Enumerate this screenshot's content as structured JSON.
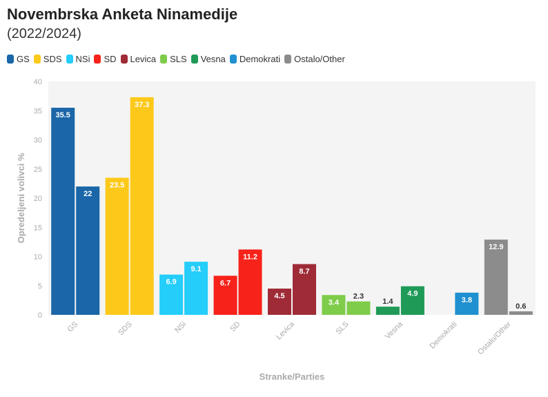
{
  "chart_data": {
    "type": "bar",
    "title": "Novembrska Anketa Ninamedije",
    "subtitle": "(2022/2024)",
    "xlabel": "Stranke/Parties",
    "ylabel": "Opredeljeni volivci %",
    "ylim": [
      0,
      40
    ],
    "yticks": [
      0,
      5,
      10,
      15,
      20,
      25,
      30,
      35,
      40
    ],
    "legend_position": "top-left",
    "grid": false,
    "categories": [
      "GS",
      "SDS",
      "NSi",
      "SD",
      "Levica",
      "SLS",
      "Vesna",
      "Demokrati",
      "Ostalo/Other"
    ],
    "colors": [
      "#1a66a8",
      "#fcc91a",
      "#24cdfa",
      "#f7221a",
      "#9e2b36",
      "#7fcc4a",
      "#1f9a57",
      "#1f90d0",
      "#8c8c8c"
    ],
    "bars": [
      [
        35.5,
        22
      ],
      [
        23.5,
        37.3
      ],
      [
        6.9,
        9.1
      ],
      [
        6.7,
        11.2
      ],
      [
        4.5,
        8.7
      ],
      [
        3.4,
        2.3
      ],
      [
        1.4,
        4.9
      ],
      [
        null,
        3.8
      ],
      [
        12.9,
        0.6
      ]
    ],
    "labels": [
      [
        "35.5",
        "22"
      ],
      [
        "23.5",
        "37.3"
      ],
      [
        "6.9",
        "9.1"
      ],
      [
        "6.7",
        "11.2"
      ],
      [
        "4.5",
        "8.7"
      ],
      [
        "3.4",
        "2.3"
      ],
      [
        "1.4",
        "4.9"
      ],
      [
        "",
        "3.8"
      ],
      [
        "12.9",
        "0.6"
      ]
    ],
    "series": [
      {
        "values": [
          35.5,
          23.5,
          6.9,
          6.7,
          4.5,
          3.4,
          1.4,
          null,
          12.9
        ]
      },
      {
        "values": [
          22,
          37.3,
          9.1,
          11.2,
          8.7,
          2.3,
          4.9,
          3.8,
          0.6
        ]
      }
    ]
  }
}
